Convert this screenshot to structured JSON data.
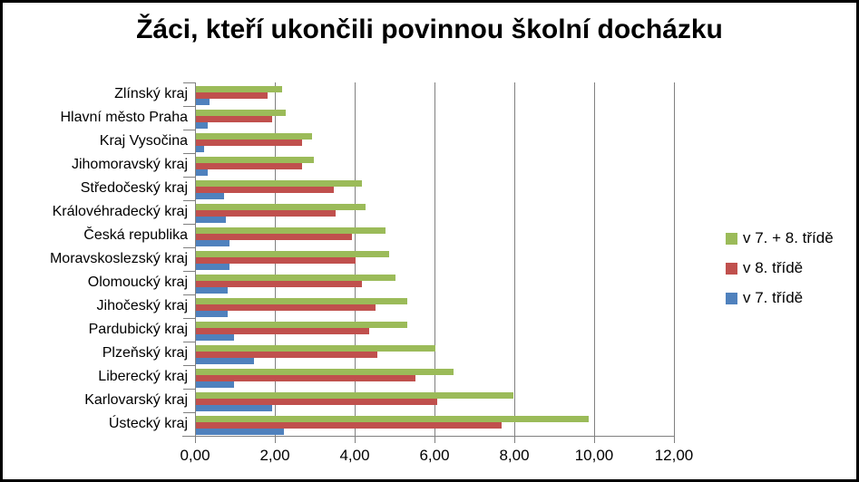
{
  "chart_data": {
    "type": "bar",
    "orientation": "horizontal",
    "title": "Žáci, kteří ukončili povinnou školní docházku",
    "categories": [
      "Zlínský kraj",
      "Hlavní město Praha",
      "Kraj Vysočina",
      "Jihomoravský kraj",
      "Středočeský kraj",
      "Královéhradecký kraj",
      "Česká republika",
      "Moravskoslezský kraj",
      "Olomoucký kraj",
      "Jihočeský kraj",
      "Pardubický kraj",
      "Plzeňský kraj",
      "Liberecký kraj",
      "Karlovarský kraj",
      "Ústecký kraj"
    ],
    "series": [
      {
        "name": "v 7. + 8. třídě",
        "color": "#9BBB59",
        "values": [
          2.15,
          2.25,
          2.9,
          2.95,
          4.15,
          4.25,
          4.75,
          4.85,
          5.0,
          5.3,
          5.3,
          6.0,
          6.45,
          7.95,
          9.85
        ]
      },
      {
        "name": "v 8. třídě",
        "color": "#C0504D",
        "values": [
          1.8,
          1.9,
          2.65,
          2.65,
          3.45,
          3.5,
          3.9,
          4.0,
          4.15,
          4.5,
          4.35,
          4.55,
          5.5,
          6.05,
          7.65
        ]
      },
      {
        "name": "v 7. třídě",
        "color": "#4F81BD",
        "values": [
          0.35,
          0.3,
          0.2,
          0.3,
          0.7,
          0.75,
          0.85,
          0.85,
          0.8,
          0.8,
          0.95,
          1.45,
          0.95,
          1.9,
          2.2
        ]
      }
    ],
    "xlim": [
      0,
      12
    ],
    "x_tick_labels": [
      "0,00",
      "2,00",
      "4,00",
      "6,00",
      "8,00",
      "10,00",
      "12,00"
    ],
    "x_tick_values": [
      0,
      2,
      4,
      6,
      8,
      10,
      12
    ],
    "grid": true,
    "legend_position": "right"
  },
  "style_colors": {
    "grid": "#808080",
    "axis": "#808080",
    "text": "#000000",
    "background": "#FFFFFF",
    "border": "#000000"
  }
}
